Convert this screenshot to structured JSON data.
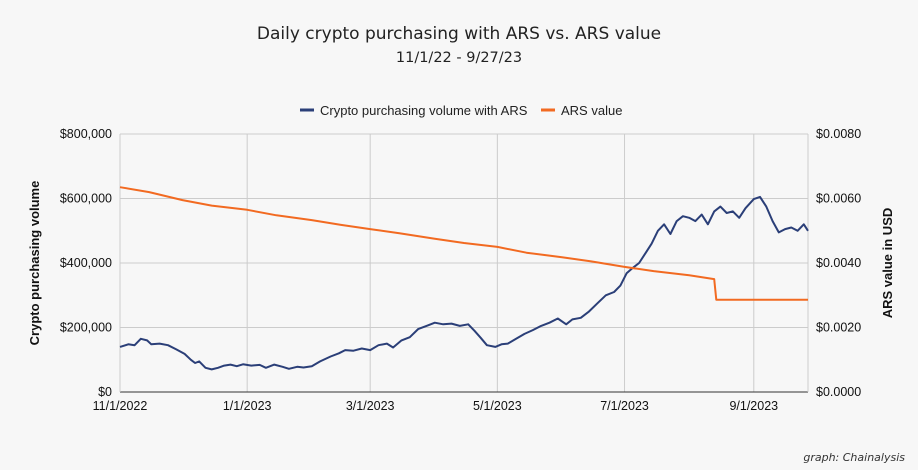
{
  "chart_data": {
    "type": "line",
    "title": "Daily crypto purchasing with ARS vs. ARS value",
    "subtitle": "11/1/22 - 9/27/23",
    "credit": "graph: Chainalysis",
    "legend_position": "top-center",
    "grid": true,
    "x": {
      "start": "2022-11-01",
      "end": "2023-09-27",
      "ticks": [
        {
          "date": "2022-11-01",
          "label": "11/1/2022"
        },
        {
          "date": "2023-01-01",
          "label": "1/1/2023"
        },
        {
          "date": "2023-03-01",
          "label": "3/1/2023"
        },
        {
          "date": "2023-05-01",
          "label": "5/1/2023"
        },
        {
          "date": "2023-07-01",
          "label": "7/1/2023"
        },
        {
          "date": "2023-09-01",
          "label": "9/1/2023"
        }
      ]
    },
    "y_left": {
      "label": "Crypto purchasing volume",
      "range": [
        0,
        800000
      ],
      "ticks": [
        0,
        200000,
        400000,
        600000,
        800000
      ],
      "tick_labels": [
        "$0",
        "$200,000",
        "$400,000",
        "$600,000",
        "$800,000"
      ]
    },
    "y_right": {
      "label": "ARS value in USD",
      "range": [
        0,
        0.008
      ],
      "ticks": [
        0,
        0.002,
        0.004,
        0.006,
        0.008
      ],
      "tick_labels": [
        "$0.0000",
        "$0.0020",
        "$0.0040",
        "$0.0060",
        "$0.0080"
      ]
    },
    "series": [
      {
        "name": "Crypto purchasing volume with ARS",
        "axis": "left",
        "color": "#2b3f78",
        "points": [
          [
            "2022-11-01",
            140000
          ],
          [
            "2022-11-05",
            148000
          ],
          [
            "2022-11-08",
            145000
          ],
          [
            "2022-11-11",
            165000
          ],
          [
            "2022-11-14",
            160000
          ],
          [
            "2022-11-16",
            148000
          ],
          [
            "2022-11-20",
            150000
          ],
          [
            "2022-11-24",
            145000
          ],
          [
            "2022-11-28",
            132000
          ],
          [
            "2022-12-02",
            118000
          ],
          [
            "2022-12-05",
            100000
          ],
          [
            "2022-12-07",
            90000
          ],
          [
            "2022-12-09",
            95000
          ],
          [
            "2022-12-12",
            75000
          ],
          [
            "2022-12-15",
            70000
          ],
          [
            "2022-12-18",
            75000
          ],
          [
            "2022-12-21",
            82000
          ],
          [
            "2022-12-24",
            85000
          ],
          [
            "2022-12-27",
            80000
          ],
          [
            "2022-12-30",
            86000
          ],
          [
            "2023-01-03",
            82000
          ],
          [
            "2023-01-07",
            84000
          ],
          [
            "2023-01-10",
            75000
          ],
          [
            "2023-01-14",
            85000
          ],
          [
            "2023-01-18",
            78000
          ],
          [
            "2023-01-21",
            72000
          ],
          [
            "2023-01-25",
            78000
          ],
          [
            "2023-01-28",
            76000
          ],
          [
            "2023-02-01",
            80000
          ],
          [
            "2023-02-05",
            95000
          ],
          [
            "2023-02-10",
            110000
          ],
          [
            "2023-02-14",
            120000
          ],
          [
            "2023-02-17",
            130000
          ],
          [
            "2023-02-21",
            128000
          ],
          [
            "2023-02-25",
            135000
          ],
          [
            "2023-03-01",
            130000
          ],
          [
            "2023-03-05",
            145000
          ],
          [
            "2023-03-09",
            150000
          ],
          [
            "2023-03-12",
            138000
          ],
          [
            "2023-03-16",
            160000
          ],
          [
            "2023-03-20",
            170000
          ],
          [
            "2023-03-24",
            195000
          ],
          [
            "2023-03-28",
            205000
          ],
          [
            "2023-04-01",
            215000
          ],
          [
            "2023-04-05",
            210000
          ],
          [
            "2023-04-09",
            212000
          ],
          [
            "2023-04-13",
            205000
          ],
          [
            "2023-04-17",
            210000
          ],
          [
            "2023-04-20",
            190000
          ],
          [
            "2023-04-23",
            168000
          ],
          [
            "2023-04-26",
            145000
          ],
          [
            "2023-04-30",
            140000
          ],
          [
            "2023-05-03",
            148000
          ],
          [
            "2023-05-06",
            150000
          ],
          [
            "2023-05-10",
            165000
          ],
          [
            "2023-05-14",
            180000
          ],
          [
            "2023-05-18",
            192000
          ],
          [
            "2023-05-22",
            205000
          ],
          [
            "2023-05-26",
            215000
          ],
          [
            "2023-05-30",
            228000
          ],
          [
            "2023-06-03",
            210000
          ],
          [
            "2023-06-06",
            225000
          ],
          [
            "2023-06-10",
            230000
          ],
          [
            "2023-06-14",
            250000
          ],
          [
            "2023-06-18",
            275000
          ],
          [
            "2023-06-22",
            300000
          ],
          [
            "2023-06-26",
            310000
          ],
          [
            "2023-06-29",
            330000
          ],
          [
            "2023-07-02",
            368000
          ],
          [
            "2023-07-05",
            385000
          ],
          [
            "2023-07-08",
            400000
          ],
          [
            "2023-07-11",
            430000
          ],
          [
            "2023-07-14",
            460000
          ],
          [
            "2023-07-17",
            500000
          ],
          [
            "2023-07-20",
            520000
          ],
          [
            "2023-07-23",
            490000
          ],
          [
            "2023-07-26",
            530000
          ],
          [
            "2023-07-29",
            545000
          ],
          [
            "2023-08-01",
            540000
          ],
          [
            "2023-08-04",
            530000
          ],
          [
            "2023-08-07",
            550000
          ],
          [
            "2023-08-10",
            520000
          ],
          [
            "2023-08-13",
            560000
          ],
          [
            "2023-08-16",
            575000
          ],
          [
            "2023-08-19",
            555000
          ],
          [
            "2023-08-22",
            560000
          ],
          [
            "2023-08-25",
            540000
          ],
          [
            "2023-08-28",
            570000
          ],
          [
            "2023-09-01",
            598000
          ],
          [
            "2023-09-04",
            605000
          ],
          [
            "2023-09-07",
            575000
          ],
          [
            "2023-09-10",
            530000
          ],
          [
            "2023-09-13",
            495000
          ],
          [
            "2023-09-16",
            505000
          ],
          [
            "2023-09-19",
            510000
          ],
          [
            "2023-09-22",
            500000
          ],
          [
            "2023-09-25",
            520000
          ],
          [
            "2023-09-27",
            500000
          ]
        ]
      },
      {
        "name": "ARS value",
        "axis": "right",
        "color": "#f26a21",
        "points": [
          [
            "2022-11-01",
            0.00635
          ],
          [
            "2022-11-15",
            0.0062
          ],
          [
            "2022-12-01",
            0.00595
          ],
          [
            "2022-12-15",
            0.00578
          ],
          [
            "2023-01-01",
            0.00565
          ],
          [
            "2023-01-15",
            0.00548
          ],
          [
            "2023-02-01",
            0.00533
          ],
          [
            "2023-02-15",
            0.00518
          ],
          [
            "2023-03-01",
            0.00505
          ],
          [
            "2023-03-15",
            0.00492
          ],
          [
            "2023-04-01",
            0.00475
          ],
          [
            "2023-04-15",
            0.00462
          ],
          [
            "2023-05-01",
            0.0045
          ],
          [
            "2023-05-15",
            0.00432
          ],
          [
            "2023-06-01",
            0.00418
          ],
          [
            "2023-06-15",
            0.00405
          ],
          [
            "2023-07-01",
            0.00388
          ],
          [
            "2023-07-15",
            0.00375
          ],
          [
            "2023-08-01",
            0.00362
          ],
          [
            "2023-08-13",
            0.0035
          ],
          [
            "2023-08-14",
            0.00286
          ],
          [
            "2023-09-01",
            0.00286
          ],
          [
            "2023-09-27",
            0.00286
          ]
        ]
      }
    ]
  }
}
